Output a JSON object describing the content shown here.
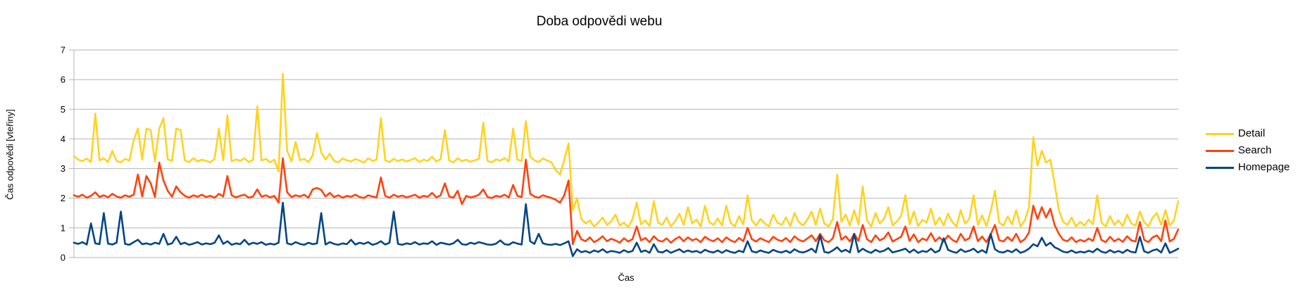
{
  "title": "Doba odpovědi webu",
  "axes": {
    "x_label": "Čas",
    "y_label": "Čas odpovědi [vteřiny]"
  },
  "colors": {
    "grid": "#b3b3b3",
    "text": "#000000",
    "background": "#ffffff",
    "detail": "#FFD320",
    "search": "#FF420E",
    "homepage": "#004586"
  },
  "chart_data": {
    "type": "line",
    "title": "Doba odpovědi webu",
    "xlabel": "Čas",
    "ylabel": "Čas odpovědi [vteřiny]",
    "ylim": [
      0,
      7
    ],
    "yticks": [
      0,
      1,
      2,
      3,
      4,
      5,
      6,
      7
    ],
    "grid": true,
    "legend_position": "right",
    "x_count": 260,
    "series": [
      {
        "name": "Detail",
        "color": "#FFD320",
        "values": [
          3.42,
          3.3,
          3.25,
          3.34,
          3.22,
          4.85,
          3.28,
          3.35,
          3.22,
          3.6,
          3.26,
          3.21,
          3.33,
          3.27,
          3.95,
          4.35,
          3.3,
          4.35,
          4.3,
          3.24,
          4.35,
          4.7,
          3.31,
          3.26,
          4.35,
          4.3,
          3.28,
          3.22,
          3.35,
          3.24,
          3.3,
          3.26,
          3.21,
          3.33,
          4.35,
          3.28,
          4.8,
          3.24,
          3.31,
          3.26,
          3.35,
          3.22,
          3.29,
          5.1,
          3.27,
          3.33,
          3.21,
          3.3,
          2.9,
          6.2,
          3.6,
          3.24,
          3.9,
          3.28,
          3.33,
          3.22,
          3.45,
          4.2,
          3.55,
          3.3,
          3.5,
          3.26,
          3.21,
          3.34,
          3.28,
          3.24,
          3.32,
          3.27,
          3.2,
          3.35,
          3.26,
          3.3,
          4.7,
          3.28,
          3.22,
          3.33,
          3.25,
          3.31,
          3.24,
          3.29,
          3.35,
          3.22,
          3.3,
          3.26,
          3.4,
          3.24,
          3.32,
          4.3,
          3.27,
          3.21,
          3.35,
          3.25,
          3.3,
          3.23,
          3.28,
          3.33,
          4.55,
          3.26,
          3.21,
          3.31,
          3.27,
          3.35,
          3.24,
          4.35,
          3.3,
          3.26,
          4.6,
          3.4,
          3.28,
          3.22,
          3.34,
          3.27,
          3.21,
          2.95,
          2.8,
          3.3,
          3.85,
          1.6,
          2.0,
          1.3,
          1.15,
          1.25,
          1.05,
          1.18,
          1.35,
          1.1,
          1.22,
          1.45,
          1.08,
          1.18,
          1.02,
          1.3,
          1.85,
          1.12,
          1.25,
          1.06,
          1.9,
          1.18,
          1.1,
          1.35,
          1.05,
          1.22,
          1.48,
          1.1,
          1.7,
          1.15,
          1.28,
          1.05,
          1.75,
          1.2,
          1.1,
          1.32,
          1.08,
          1.75,
          1.18,
          1.05,
          1.4,
          1.12,
          2.1,
          1.25,
          1.08,
          1.3,
          1.15,
          1.05,
          1.45,
          1.18,
          1.1,
          1.35,
          1.06,
          1.5,
          1.2,
          1.08,
          1.28,
          1.55,
          1.1,
          1.65,
          1.15,
          1.05,
          1.3,
          2.8,
          1.2,
          1.45,
          1.08,
          1.6,
          1.12,
          2.4,
          1.25,
          1.05,
          1.5,
          1.15,
          1.3,
          1.7,
          1.08,
          1.22,
          1.4,
          2.1,
          1.12,
          1.55,
          1.06,
          1.28,
          1.18,
          1.65,
          1.1,
          1.35,
          1.08,
          1.48,
          1.2,
          1.05,
          1.6,
          1.15,
          1.3,
          2.1,
          1.1,
          1.42,
          1.06,
          1.55,
          2.25,
          1.18,
          1.08,
          1.38,
          1.12,
          1.6,
          1.05,
          1.25,
          1.7,
          4.05,
          3.1,
          3.6,
          3.2,
          3.3,
          2.5,
          1.6,
          1.2,
          1.1,
          1.35,
          1.05,
          1.2,
          1.08,
          1.28,
          1.12,
          2.1,
          1.18,
          1.05,
          1.4,
          1.1,
          1.25,
          1.06,
          1.45,
          1.15,
          1.08,
          1.55,
          1.2,
          1.05,
          1.35,
          1.5,
          1.1,
          1.6,
          1.08,
          1.25,
          1.9
        ]
      },
      {
        "name": "Search",
        "color": "#FF420E",
        "values": [
          2.1,
          2.05,
          2.12,
          2.02,
          2.08,
          2.2,
          2.04,
          2.1,
          2.03,
          2.15,
          2.06,
          2.02,
          2.1,
          2.05,
          2.12,
          2.8,
          2.06,
          2.75,
          2.5,
          2.04,
          3.2,
          2.6,
          2.25,
          2.05,
          2.4,
          2.2,
          2.08,
          2.02,
          2.1,
          2.05,
          2.12,
          2.04,
          2.08,
          2.02,
          2.15,
          2.06,
          2.75,
          2.1,
          2.03,
          2.08,
          2.12,
          2.02,
          2.06,
          2.3,
          2.05,
          2.1,
          2.03,
          2.08,
          1.85,
          3.35,
          2.2,
          2.04,
          2.1,
          2.06,
          2.12,
          2.02,
          2.3,
          2.35,
          2.28,
          2.06,
          2.18,
          2.04,
          2.1,
          2.02,
          2.08,
          2.05,
          2.12,
          2.04,
          2.01,
          2.1,
          2.06,
          2.03,
          2.7,
          2.08,
          2.02,
          2.12,
          2.05,
          2.09,
          2.03,
          2.07,
          2.12,
          2.02,
          2.08,
          2.05,
          2.18,
          2.03,
          2.1,
          2.5,
          2.06,
          2.02,
          2.25,
          1.8,
          2.08,
          2.03,
          2.06,
          2.12,
          2.3,
          2.04,
          2.01,
          2.08,
          2.05,
          2.12,
          2.03,
          2.45,
          2.08,
          2.04,
          3.3,
          2.15,
          2.06,
          2.02,
          2.1,
          2.05,
          2.01,
          1.95,
          1.85,
          2.1,
          2.6,
          0.45,
          0.9,
          0.62,
          0.55,
          0.68,
          0.52,
          0.6,
          0.72,
          0.55,
          0.63,
          0.58,
          0.5,
          0.65,
          0.54,
          0.62,
          1.05,
          0.58,
          0.66,
          0.52,
          0.72,
          0.58,
          0.54,
          0.65,
          0.5,
          0.62,
          0.7,
          0.55,
          0.68,
          0.58,
          0.63,
          0.52,
          0.7,
          0.6,
          0.55,
          0.65,
          0.52,
          0.68,
          0.58,
          0.52,
          0.66,
          0.55,
          1.0,
          0.62,
          0.54,
          0.65,
          0.58,
          0.52,
          0.7,
          0.6,
          0.55,
          0.66,
          0.52,
          0.72,
          0.6,
          0.54,
          0.64,
          0.75,
          0.55,
          0.8,
          0.58,
          0.52,
          0.65,
          1.2,
          0.6,
          0.72,
          0.54,
          0.8,
          0.56,
          1.1,
          0.62,
          0.52,
          0.75,
          0.58,
          0.65,
          0.85,
          0.54,
          0.62,
          0.7,
          1.05,
          0.56,
          0.78,
          0.52,
          0.64,
          0.58,
          0.82,
          0.55,
          0.68,
          0.54,
          0.74,
          0.6,
          0.52,
          0.8,
          0.58,
          0.65,
          1.05,
          0.55,
          0.71,
          0.52,
          0.78,
          1.1,
          0.59,
          0.54,
          0.69,
          0.56,
          0.8,
          0.52,
          0.62,
          0.85,
          1.75,
          1.3,
          1.7,
          1.35,
          1.65,
          1.1,
          0.8,
          0.6,
          0.55,
          0.68,
          0.52,
          0.6,
          0.54,
          0.64,
          0.56,
          1.0,
          0.59,
          0.52,
          0.7,
          0.55,
          0.63,
          0.53,
          0.72,
          0.58,
          0.54,
          1.2,
          0.6,
          0.52,
          0.68,
          0.75,
          0.55,
          1.25,
          0.54,
          0.63,
          0.95
        ]
      },
      {
        "name": "Homepage",
        "color": "#004586",
        "values": [
          0.5,
          0.46,
          0.52,
          0.44,
          1.15,
          0.48,
          0.45,
          1.5,
          0.47,
          0.44,
          0.5,
          1.55,
          0.46,
          0.43,
          0.52,
          0.6,
          0.45,
          0.48,
          0.44,
          0.5,
          0.46,
          0.8,
          0.44,
          0.48,
          0.7,
          0.45,
          0.5,
          0.43,
          0.47,
          0.52,
          0.44,
          0.48,
          0.45,
          0.5,
          0.75,
          0.46,
          0.55,
          0.43,
          0.48,
          0.45,
          0.6,
          0.44,
          0.5,
          0.46,
          0.52,
          0.43,
          0.47,
          0.44,
          0.5,
          1.85,
          0.48,
          0.44,
          0.52,
          0.46,
          0.43,
          0.5,
          0.45,
          0.48,
          1.5,
          0.44,
          0.52,
          0.46,
          0.43,
          0.48,
          0.45,
          0.6,
          0.44,
          0.5,
          0.46,
          0.52,
          0.43,
          0.47,
          0.55,
          0.44,
          0.5,
          1.55,
          0.46,
          0.43,
          0.48,
          0.45,
          0.52,
          0.44,
          0.48,
          0.46,
          0.55,
          0.43,
          0.5,
          0.47,
          0.44,
          0.48,
          0.6,
          0.45,
          0.43,
          0.5,
          0.46,
          0.52,
          0.48,
          0.44,
          0.43,
          0.47,
          0.58,
          0.45,
          0.43,
          0.52,
          0.47,
          0.44,
          1.8,
          0.55,
          0.46,
          0.8,
          0.48,
          0.44,
          0.43,
          0.46,
          0.42,
          0.48,
          0.55,
          0.05,
          0.28,
          0.18,
          0.22,
          0.16,
          0.24,
          0.19,
          0.28,
          0.17,
          0.22,
          0.2,
          0.16,
          0.25,
          0.18,
          0.22,
          0.5,
          0.19,
          0.24,
          0.16,
          0.45,
          0.2,
          0.17,
          0.25,
          0.16,
          0.22,
          0.28,
          0.18,
          0.24,
          0.19,
          0.22,
          0.16,
          0.26,
          0.2,
          0.17,
          0.24,
          0.16,
          0.25,
          0.19,
          0.16,
          0.23,
          0.18,
          0.55,
          0.21,
          0.17,
          0.24,
          0.19,
          0.16,
          0.26,
          0.2,
          0.17,
          0.23,
          0.16,
          0.28,
          0.2,
          0.17,
          0.22,
          0.3,
          0.17,
          0.75,
          0.19,
          0.16,
          0.24,
          0.35,
          0.2,
          0.26,
          0.17,
          0.8,
          0.18,
          0.3,
          0.21,
          0.16,
          0.26,
          0.19,
          0.23,
          0.32,
          0.17,
          0.21,
          0.25,
          0.3,
          0.17,
          0.27,
          0.16,
          0.22,
          0.19,
          0.3,
          0.17,
          0.24,
          0.65,
          0.26,
          0.2,
          0.16,
          0.28,
          0.19,
          0.23,
          0.3,
          0.17,
          0.25,
          0.16,
          0.8,
          0.28,
          0.19,
          0.17,
          0.24,
          0.18,
          0.28,
          0.16,
          0.21,
          0.3,
          0.45,
          0.38,
          0.67,
          0.4,
          0.5,
          0.35,
          0.28,
          0.2,
          0.17,
          0.24,
          0.16,
          0.2,
          0.17,
          0.23,
          0.18,
          0.3,
          0.2,
          0.16,
          0.25,
          0.17,
          0.22,
          0.16,
          0.26,
          0.19,
          0.17,
          0.7,
          0.21,
          0.16,
          0.24,
          0.28,
          0.17,
          0.48,
          0.16,
          0.22,
          0.3
        ]
      }
    ]
  }
}
